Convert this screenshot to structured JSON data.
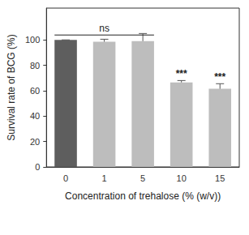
{
  "chart_data": {
    "type": "bar",
    "x_label": "Concentration of trehalose (% (w/v))",
    "y_label": "Survival rate of BCG (%)",
    "categories": [
      "0",
      "1",
      "5",
      "10",
      "15"
    ],
    "values": [
      100,
      98.5,
      99,
      66.5,
      61.5
    ],
    "errors": [
      0,
      2,
      6,
      1.5,
      4
    ],
    "colors": [
      "#5e5e5e",
      "#bdbdbd",
      "#bdbdbd",
      "#bdbdbd",
      "#bdbdbd"
    ],
    "ylim": [
      0,
      125
    ],
    "yticks": [
      0,
      20,
      40,
      60,
      80,
      100
    ],
    "grid": false,
    "annotations": [
      {
        "text": "ns",
        "from": "0",
        "to": "5"
      },
      {
        "text": "***",
        "category": "10"
      },
      {
        "text": "***",
        "category": "15"
      }
    ]
  }
}
